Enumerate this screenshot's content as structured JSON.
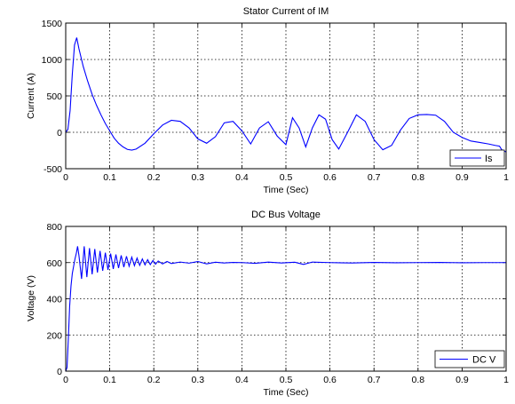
{
  "chart_data": [
    {
      "type": "line",
      "title": "Stator Current of IM",
      "xlabel": "Time (Sec)",
      "ylabel": "Current (A)",
      "xlim": [
        0,
        1
      ],
      "ylim": [
        -500,
        1500
      ],
      "xticks": [
        "0",
        "0.1",
        "0.2",
        "0.3",
        "0.4",
        "0.5",
        "0.6",
        "0.7",
        "0.8",
        "0.9",
        "1"
      ],
      "yticks": [
        "-500",
        "0",
        "500",
        "1000",
        "1500"
      ],
      "grid": true,
      "legend_position": "bottom-right",
      "series": [
        {
          "name": "Is",
          "color": "#0000ff",
          "x": [
            0,
            0.005,
            0.01,
            0.015,
            0.02,
            0.025,
            0.03,
            0.04,
            0.05,
            0.06,
            0.07,
            0.08,
            0.09,
            0.1,
            0.11,
            0.12,
            0.13,
            0.14,
            0.15,
            0.16,
            0.18,
            0.2,
            0.22,
            0.24,
            0.26,
            0.28,
            0.3,
            0.32,
            0.34,
            0.36,
            0.38,
            0.4,
            0.42,
            0.44,
            0.46,
            0.48,
            0.5,
            0.515,
            0.53,
            0.545,
            0.56,
            0.575,
            0.59,
            0.605,
            0.62,
            0.64,
            0.66,
            0.68,
            0.7,
            0.72,
            0.74,
            0.76,
            0.78,
            0.8,
            0.82,
            0.84,
            0.86,
            0.88,
            0.9,
            0.92,
            0.94,
            0.96,
            0.975,
            0.985,
            0.99,
            1.0
          ],
          "y": [
            0,
            40,
            300,
            800,
            1200,
            1300,
            1150,
            900,
            700,
            520,
            370,
            240,
            120,
            20,
            -80,
            -150,
            -200,
            -235,
            -245,
            -230,
            -150,
            -20,
            100,
            165,
            150,
            60,
            -90,
            -150,
            -60,
            130,
            150,
            20,
            -160,
            60,
            145,
            -50,
            -170,
            200,
            60,
            -200,
            60,
            240,
            180,
            -100,
            -230,
            0,
            240,
            150,
            -100,
            -240,
            -180,
            30,
            190,
            240,
            245,
            235,
            150,
            0,
            -70,
            -120,
            -140,
            -160,
            -180,
            -190,
            -240,
            -270
          ]
        }
      ]
    },
    {
      "type": "line",
      "title": "DC Bus Voltage",
      "xlabel": "Time (Sec)",
      "ylabel": "Voltage (V)",
      "xlim": [
        0,
        1
      ],
      "ylim": [
        0,
        800
      ],
      "xticks": [
        "0",
        "0.1",
        "0.2",
        "0.3",
        "0.4",
        "0.5",
        "0.6",
        "0.7",
        "0.8",
        "0.9",
        "1"
      ],
      "yticks": [
        "0",
        "200",
        "400",
        "600",
        "800"
      ],
      "grid": true,
      "legend_position": "bottom-right",
      "series": [
        {
          "name": "DC V",
          "color": "#0000ff",
          "x": [
            0,
            0.003,
            0.006,
            0.009,
            0.012,
            0.015,
            0.018,
            0.021,
            0.024,
            0.027,
            0.03,
            0.036,
            0.042,
            0.048,
            0.054,
            0.06,
            0.066,
            0.072,
            0.078,
            0.084,
            0.09,
            0.096,
            0.102,
            0.108,
            0.114,
            0.12,
            0.126,
            0.132,
            0.138,
            0.144,
            0.15,
            0.156,
            0.162,
            0.168,
            0.174,
            0.18,
            0.186,
            0.192,
            0.198,
            0.204,
            0.21,
            0.22,
            0.23,
            0.24,
            0.26,
            0.28,
            0.3,
            0.32,
            0.34,
            0.36,
            0.38,
            0.4,
            0.43,
            0.46,
            0.49,
            0.52,
            0.54,
            0.56,
            0.6,
            0.65,
            0.7,
            0.75,
            0.8,
            0.85,
            0.9,
            0.95,
            1.0
          ],
          "y": [
            0,
            20,
            180,
            360,
            470,
            540,
            580,
            620,
            650,
            690,
            640,
            510,
            690,
            520,
            680,
            535,
            675,
            545,
            665,
            555,
            655,
            560,
            650,
            565,
            645,
            570,
            640,
            575,
            635,
            580,
            630,
            583,
            625,
            585,
            620,
            587,
            616,
            589,
            612,
            591,
            609,
            593,
            606,
            595,
            603,
            597,
            606,
            593,
            602,
            598,
            601,
            600,
            596,
            603,
            598,
            602,
            590,
            603,
            600,
            598,
            601,
            599,
            600,
            601,
            599,
            600,
            600
          ]
        }
      ]
    }
  ]
}
